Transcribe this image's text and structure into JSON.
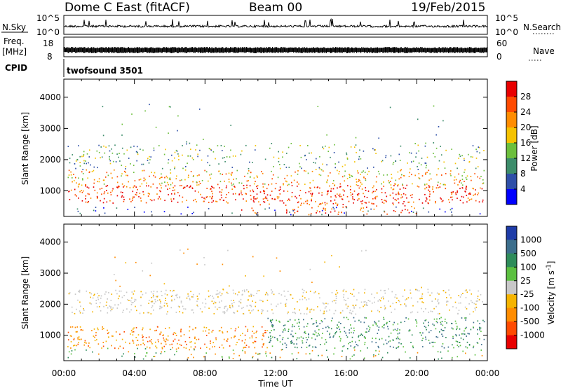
{
  "header": {
    "station": "Dome C East (fitACF)",
    "beam": "Beam 00",
    "date": "19/Feb/2015"
  },
  "status_panel": {
    "nsky_label": "N.Sky",
    "nsky_ticks": [
      "10^5",
      "10^0"
    ],
    "nsearch_label": "N.Search",
    "nsearch_ticks": [
      "10^5",
      "10^0"
    ],
    "freq_label": "Freq.",
    "freq_unit": "[MHz]",
    "freq_ticks": [
      "18",
      "8"
    ],
    "nave_label": "Nave",
    "nave_ticks": [
      "60",
      "0"
    ],
    "cpid_label": "CPID",
    "cpid_value": "twofsound 3501"
  },
  "x_ticks": [
    "00:00",
    "04:00",
    "08:00",
    "12:00",
    "16:00",
    "20:00",
    "00:00"
  ],
  "xlabel": "Time UT",
  "chart_data": [
    {
      "type": "heatmap",
      "ylabel": "Slant Range [km]",
      "yticks": [
        1000,
        2000,
        3000,
        4000
      ],
      "ylim": [
        180,
        4580
      ],
      "xlim": [
        0,
        24
      ],
      "colorbar": {
        "label": "Power [dB]",
        "ticks": [
          "28",
          "24",
          "20",
          "16",
          "12",
          "8",
          "4"
        ],
        "colors": [
          "#e80000",
          "#ff4a00",
          "#ff8c00",
          "#f5c200",
          "#6cbf3c",
          "#3c8c6a",
          "#2e4fa8",
          "#0000ff"
        ]
      }
    },
    {
      "type": "heatmap",
      "ylabel": "Slant Range [km]",
      "yticks": [
        1000,
        2000,
        3000,
        4000
      ],
      "ylim": [
        180,
        4580
      ],
      "xlim": [
        0,
        24
      ],
      "colorbar": {
        "label": "Velocity [m s",
        "label_sup": "-1",
        "label_end": "]",
        "ticks": [
          "1000",
          "500",
          "100",
          "25",
          "-25",
          "-100",
          "-500",
          "-1000"
        ],
        "colors": [
          "#1e3ca8",
          "#3c6e8c",
          "#2e8c5a",
          "#5cc040",
          "#c8c8c8",
          "#f5b400",
          "#ff8c00",
          "#ff4a00",
          "#e80000"
        ]
      }
    }
  ]
}
